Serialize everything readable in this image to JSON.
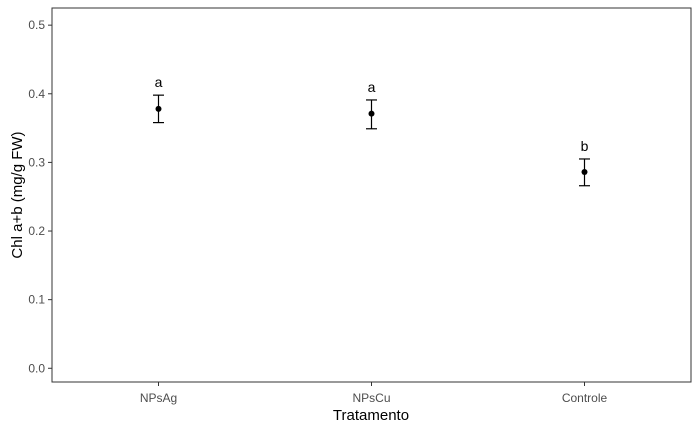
{
  "chart_data": {
    "type": "scatter",
    "title": "",
    "xlabel": "Tratamento",
    "ylabel": "Chl a+b (mg/g FW)",
    "categories": [
      "NPsAg",
      "NPsCu",
      "Controle"
    ],
    "values": [
      0.378,
      0.371,
      0.286
    ],
    "error_low": [
      0.358,
      0.349,
      0.266
    ],
    "error_high": [
      0.398,
      0.391,
      0.305
    ],
    "group_letters": [
      "a",
      "a",
      "b"
    ],
    "ylim": [
      -0.02,
      0.525
    ],
    "yticks": [
      0.0,
      0.1,
      0.2,
      0.3,
      0.4,
      0.5
    ],
    "ytick_labels": [
      "0.0",
      "0.1",
      "0.2",
      "0.3",
      "0.4",
      "0.5"
    ],
    "grid": false,
    "colors": {
      "point": "#000000",
      "axis": "#333333",
      "tick_text": "#4d4d4d"
    }
  }
}
